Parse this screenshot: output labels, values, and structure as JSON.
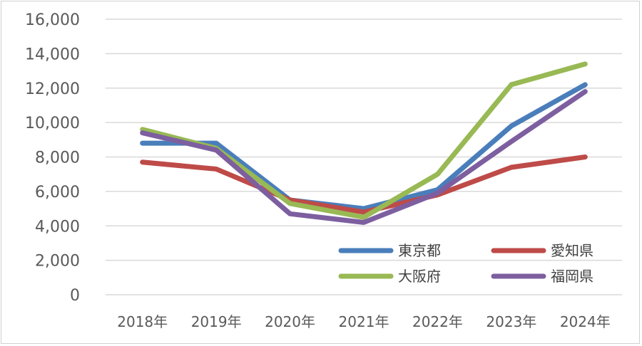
{
  "chart_data": {
    "type": "line",
    "title": "",
    "xlabel": "",
    "ylabel": "",
    "categories": [
      "2018年",
      "2019年",
      "2020年",
      "2021年",
      "2022年",
      "2023年",
      "2024年"
    ],
    "ylim": [
      0,
      16000
    ],
    "yticks": [
      0,
      2000,
      4000,
      6000,
      8000,
      10000,
      12000,
      14000,
      16000
    ],
    "ytick_labels": [
      "0",
      "2,000",
      "4,000",
      "6,000",
      "8,000",
      "10,000",
      "12,000",
      "14,000",
      "16,000"
    ],
    "grid": "horizontal",
    "legend_position": "bottom-right",
    "series": [
      {
        "name": "東京都",
        "color": "#4a7ebb",
        "values": [
          8800,
          8800,
          5500,
          5000,
          6100,
          9800,
          12200
        ]
      },
      {
        "name": "愛知県",
        "color": "#be4b48",
        "values": [
          7700,
          7300,
          5500,
          4800,
          5800,
          7400,
          8000
        ]
      },
      {
        "name": "大阪府",
        "color": "#98b954",
        "values": [
          9600,
          8500,
          5300,
          4500,
          7000,
          12200,
          13400
        ]
      },
      {
        "name": "福岡県",
        "color": "#7d5fa0",
        "values": [
          9400,
          8400,
          4700,
          4200,
          5900,
          8900,
          11800
        ]
      }
    ]
  }
}
